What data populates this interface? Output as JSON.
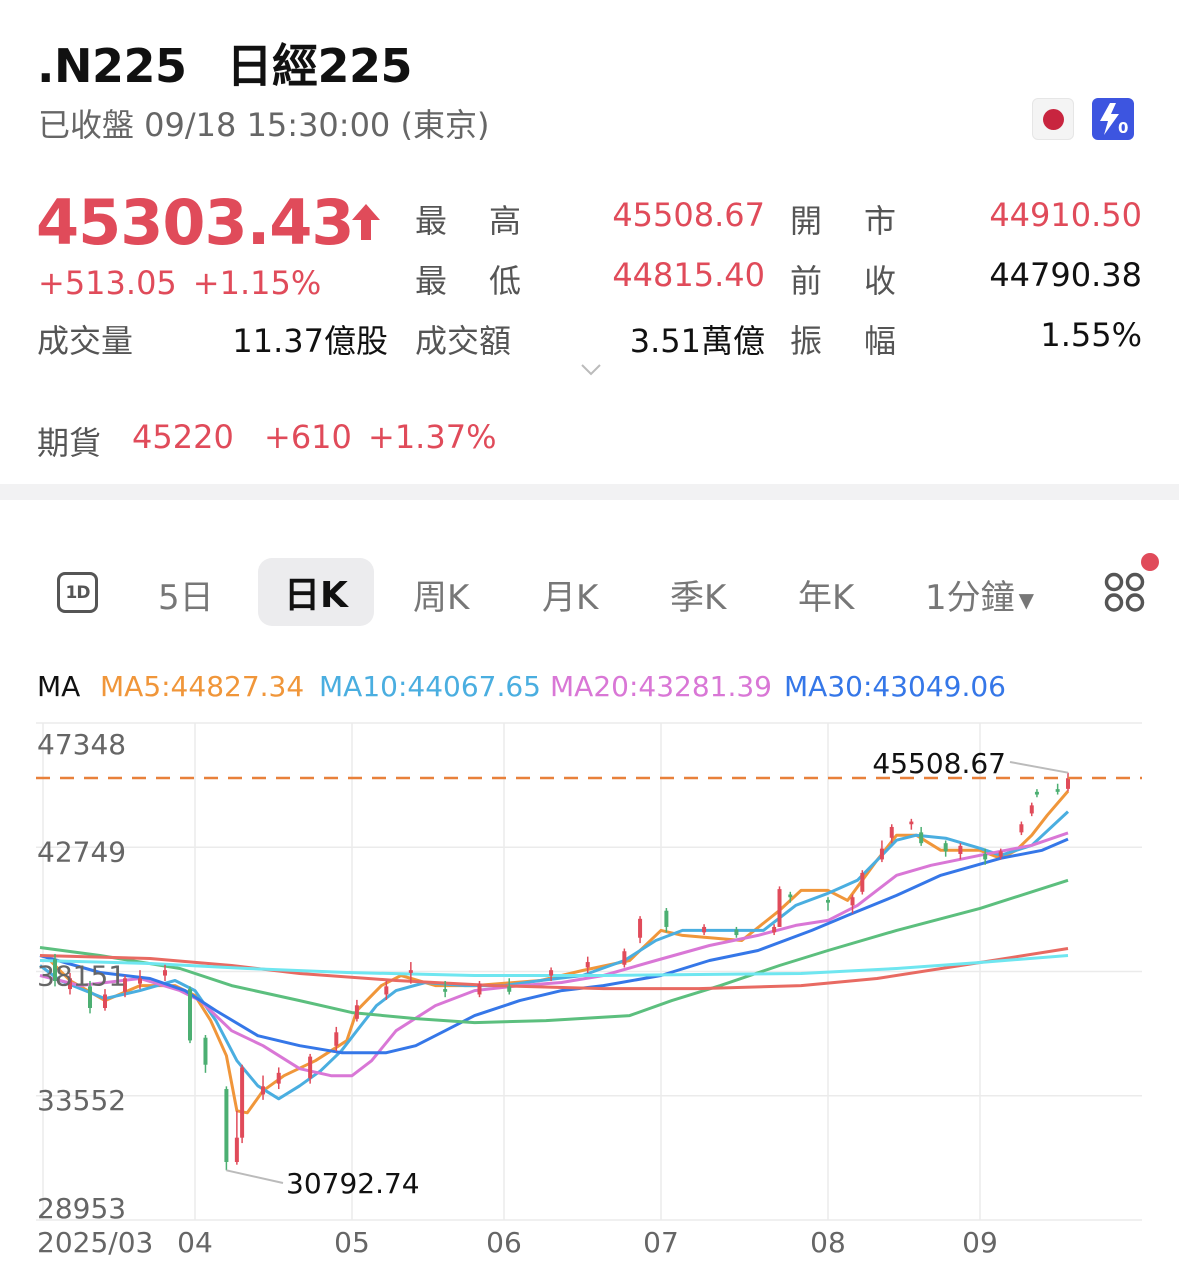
{
  "header": {
    "symbol": ".N225",
    "name": "日經225",
    "status": "已收盤 09/18 15:30:00 (東京)",
    "icons": [
      "japan-flag-icon",
      "zero-commission-bolt-icon"
    ]
  },
  "quote": {
    "price": "45303.43",
    "change": "+513.05",
    "change_pct": "+1.15%",
    "direction": "up",
    "stats": {
      "high_label": [
        "最",
        "高"
      ],
      "high": "45508.67",
      "open_label": [
        "開",
        "市"
      ],
      "open": "44910.50",
      "low_label": [
        "最",
        "低"
      ],
      "low": "44815.40",
      "prev_close_label": [
        "前",
        "收"
      ],
      "prev_close": "44790.38",
      "volume_label": "成交量",
      "volume": "11.37億股",
      "turnover_label": "成交額",
      "turnover": "3.51萬億",
      "amplitude_label": [
        "振",
        "幅"
      ],
      "amplitude": "1.55%"
    },
    "futures": {
      "label": "期貨",
      "price": "45220",
      "change": "+610",
      "change_pct": "+1.37%"
    }
  },
  "colors": {
    "up": "#e04b5a",
    "down": "#4caf72",
    "accent": "#3d55e0",
    "high_line": "#e8803a"
  },
  "tabs": {
    "items": [
      "5日",
      "日K",
      "周K",
      "月K",
      "季K",
      "年K"
    ],
    "selected": "日K",
    "minute_dropdown": "1分鐘",
    "intraday_icon_label": "1D"
  },
  "ma_legend": {
    "label": "MA",
    "ma5": "MA5:44827.34",
    "ma10": "MA10:44067.65",
    "ma20": "MA20:43281.39",
    "ma30": "MA30:43049.06"
  },
  "chart_data": {
    "type": "candlestick",
    "ylim": [
      28953,
      47348
    ],
    "y_ticks": [
      "47348",
      "42749",
      "38151",
      "33552",
      "28953"
    ],
    "x_ticks": [
      {
        "label": "2025/03",
        "date": "2025-03-01"
      },
      {
        "label": "04",
        "date": "2025-04-01"
      },
      {
        "label": "05",
        "date": "2025-05-01"
      },
      {
        "label": "06",
        "date": "2025-06-01"
      },
      {
        "label": "07",
        "date": "2025-07-01"
      },
      {
        "label": "08",
        "date": "2025-08-01"
      },
      {
        "label": "09",
        "date": "2025-09-01"
      }
    ],
    "grid": true,
    "high_marker": {
      "label": "45508.67",
      "value": 45508.67,
      "date": "2025-09-18"
    },
    "low_marker": {
      "label": "30792.74",
      "value": 30792.74,
      "date": "2025-04-07"
    },
    "candles_fields": [
      "date",
      "open",
      "close",
      "low",
      "high"
    ],
    "candles": [
      [
        "2025-03-04",
        38600,
        37800,
        37600,
        38800
      ],
      [
        "2025-03-07",
        37500,
        37900,
        37300,
        38100
      ],
      [
        "2025-03-11",
        37600,
        36800,
        36600,
        37800
      ],
      [
        "2025-03-14",
        36800,
        37300,
        36700,
        37500
      ],
      [
        "2025-03-18",
        37400,
        37900,
        37200,
        38000
      ],
      [
        "2025-03-21",
        37700,
        37900,
        37500,
        38200
      ],
      [
        "2025-03-26",
        38000,
        38200,
        37800,
        38400
      ],
      [
        "2025-03-31",
        37500,
        35600,
        35500,
        37600
      ],
      [
        "2025-04-03",
        35700,
        34700,
        34400,
        35800
      ],
      [
        "2025-04-07",
        33800,
        31100,
        30792.74,
        33900
      ],
      [
        "2025-04-09",
        31100,
        32000,
        31000,
        33000
      ],
      [
        "2025-04-10",
        32000,
        34600,
        31800,
        34700
      ],
      [
        "2025-04-14",
        33600,
        33900,
        33400,
        34300
      ],
      [
        "2025-04-17",
        34000,
        34400,
        33800,
        34600
      ],
      [
        "2025-04-23",
        34200,
        35000,
        34000,
        35100
      ],
      [
        "2025-04-28",
        35400,
        35900,
        35200,
        36100
      ],
      [
        "2025-05-02",
        36400,
        36900,
        36300,
        37100
      ],
      [
        "2025-05-08",
        37300,
        37600,
        37100,
        37800
      ],
      [
        "2025-05-13",
        38100,
        38200,
        37700,
        38500
      ],
      [
        "2025-05-20",
        37500,
        37400,
        37200,
        37800
      ],
      [
        "2025-05-27",
        37300,
        37700,
        37200,
        37800
      ],
      [
        "2025-06-02",
        37600,
        37400,
        37300,
        37900
      ],
      [
        "2025-06-10",
        38000,
        38200,
        37800,
        38300
      ],
      [
        "2025-06-17",
        38300,
        38500,
        38100,
        38700
      ],
      [
        "2025-06-24",
        38400,
        38900,
        38300,
        39000
      ],
      [
        "2025-06-27",
        39400,
        40100,
        39200,
        40200
      ],
      [
        "2025-07-02",
        40400,
        39800,
        39600,
        40500
      ],
      [
        "2025-07-09",
        39600,
        39800,
        39500,
        39900
      ],
      [
        "2025-07-15",
        39700,
        39500,
        39400,
        39800
      ],
      [
        "2025-07-22",
        39600,
        39800,
        39500,
        39900
      ],
      [
        "2025-07-23",
        39800,
        41200,
        39800,
        41300
      ],
      [
        "2025-07-25",
        41000,
        40900,
        40700,
        41100
      ],
      [
        "2025-08-01",
        40800,
        40700,
        40400,
        40900
      ],
      [
        "2025-08-06",
        40600,
        40900,
        40300,
        41000
      ],
      [
        "2025-08-08",
        41100,
        41800,
        41000,
        41900
      ],
      [
        "2025-08-12",
        42300,
        42700,
        42200,
        43000
      ],
      [
        "2025-08-14",
        43100,
        43500,
        42900,
        43600
      ],
      [
        "2025-08-18",
        43600,
        43700,
        43400,
        43800
      ],
      [
        "2025-08-20",
        43300,
        42900,
        42800,
        43500
      ],
      [
        "2025-08-25",
        42900,
        42600,
        42400,
        43000
      ],
      [
        "2025-08-28",
        42500,
        42800,
        42300,
        42900
      ],
      [
        "2025-09-02",
        42500,
        42300,
        42100,
        42700
      ],
      [
        "2025-09-05",
        42400,
        42600,
        42300,
        42700
      ],
      [
        "2025-09-09",
        43300,
        43600,
        43200,
        43700
      ],
      [
        "2025-09-11",
        44000,
        44300,
        43900,
        44400
      ],
      [
        "2025-09-12",
        44800,
        44700,
        44600,
        44900
      ],
      [
        "2025-09-16",
        44900,
        44800,
        44700,
        45100
      ],
      [
        "2025-09-18",
        44910.5,
        45303.43,
        44815.4,
        45508.67
      ]
    ],
    "series": [
      {
        "name": "MA5",
        "color": "#f0963a",
        "points": [
          [
            "2025-03-03",
            38557
          ],
          [
            "2025-03-07",
            37816
          ],
          [
            "2025-03-14",
            37074
          ],
          [
            "2025-03-21",
            37630
          ],
          [
            "2025-03-28",
            37630
          ],
          [
            "2025-04-01",
            37260
          ],
          [
            "2025-04-04",
            36332
          ],
          [
            "2025-04-07",
            35035
          ],
          [
            "2025-04-09",
            32994
          ],
          [
            "2025-04-11",
            32920
          ],
          [
            "2025-04-14",
            33736
          ],
          [
            "2025-04-18",
            34292
          ],
          [
            "2025-04-24",
            34849
          ],
          [
            "2025-04-30",
            35590
          ],
          [
            "2025-05-02",
            36703
          ],
          [
            "2025-05-07",
            37630
          ],
          [
            "2025-05-11",
            38001
          ],
          [
            "2025-05-18",
            37630
          ],
          [
            "2025-05-26",
            37630
          ],
          [
            "2025-06-08",
            37816
          ],
          [
            "2025-06-16",
            38187
          ],
          [
            "2025-06-25",
            38557
          ],
          [
            "2025-07-01",
            39670
          ],
          [
            "2025-07-05",
            39485
          ],
          [
            "2025-07-16",
            39299
          ],
          [
            "2025-07-23",
            40412
          ],
          [
            "2025-07-27",
            41154
          ],
          [
            "2025-08-01",
            41154
          ],
          [
            "2025-08-05",
            40783
          ],
          [
            "2025-08-11",
            42267
          ],
          [
            "2025-08-15",
            43194
          ],
          [
            "2025-08-19",
            43194
          ],
          [
            "2025-08-24",
            42638
          ],
          [
            "2025-09-01",
            42638
          ],
          [
            "2025-09-05",
            42341
          ],
          [
            "2025-09-08",
            42638
          ],
          [
            "2025-09-11",
            43194
          ],
          [
            "2025-09-14",
            43936
          ],
          [
            "2025-09-18",
            44827.34
          ]
        ]
      },
      {
        "name": "MA10",
        "color": "#4aaee0",
        "points": [
          [
            "2025-03-01",
            38372
          ],
          [
            "2025-03-05",
            37816
          ],
          [
            "2025-03-14",
            37148
          ],
          [
            "2025-03-21",
            37445
          ],
          [
            "2025-03-28",
            37816
          ],
          [
            "2025-04-01",
            37445
          ],
          [
            "2025-04-05",
            36332
          ],
          [
            "2025-04-09",
            34849
          ],
          [
            "2025-04-13",
            33921
          ],
          [
            "2025-04-17",
            33440
          ],
          [
            "2025-04-21",
            33921
          ],
          [
            "2025-04-25",
            34477
          ],
          [
            "2025-04-29",
            35220
          ],
          [
            "2025-05-02",
            35961
          ],
          [
            "2025-05-06",
            36888
          ],
          [
            "2025-05-10",
            37445
          ],
          [
            "2025-05-16",
            37742
          ],
          [
            "2025-05-24",
            37630
          ],
          [
            "2025-06-01",
            37630
          ],
          [
            "2025-06-08",
            37816
          ],
          [
            "2025-06-16",
            38001
          ],
          [
            "2025-06-24",
            38557
          ],
          [
            "2025-06-30",
            39299
          ],
          [
            "2025-07-05",
            39670
          ],
          [
            "2025-07-13",
            39670
          ],
          [
            "2025-07-20",
            39670
          ],
          [
            "2025-07-26",
            40597
          ],
          [
            "2025-08-01",
            41043
          ],
          [
            "2025-08-07",
            41525
          ],
          [
            "2025-08-11",
            42267
          ],
          [
            "2025-08-15",
            43009
          ],
          [
            "2025-08-19",
            43194
          ],
          [
            "2025-08-25",
            43083
          ],
          [
            "2025-09-01",
            42712
          ],
          [
            "2025-09-05",
            42452
          ],
          [
            "2025-09-11",
            42823
          ],
          [
            "2025-09-18",
            44067.65
          ]
        ]
      },
      {
        "name": "MA20",
        "color": "#d977d6",
        "points": [
          [
            "2025-03-01",
            38001
          ],
          [
            "2025-03-09",
            37630
          ],
          [
            "2025-03-21",
            37890
          ],
          [
            "2025-03-29",
            37445
          ],
          [
            "2025-04-02",
            37074
          ],
          [
            "2025-04-08",
            35961
          ],
          [
            "2025-04-14",
            35405
          ],
          [
            "2025-04-21",
            34552
          ],
          [
            "2025-04-27",
            34292
          ],
          [
            "2025-05-01",
            34292
          ],
          [
            "2025-05-05",
            34849
          ],
          [
            "2025-05-10",
            35961
          ],
          [
            "2025-05-18",
            36888
          ],
          [
            "2025-05-26",
            37445
          ],
          [
            "2025-06-04",
            37630
          ],
          [
            "2025-06-12",
            37742
          ],
          [
            "2025-06-20",
            38001
          ],
          [
            "2025-06-30",
            38557
          ],
          [
            "2025-07-10",
            39114
          ],
          [
            "2025-07-19",
            39485
          ],
          [
            "2025-07-26",
            39856
          ],
          [
            "2025-08-01",
            40041
          ],
          [
            "2025-08-07",
            40597
          ],
          [
            "2025-08-15",
            41710
          ],
          [
            "2025-08-22",
            42081
          ],
          [
            "2025-09-01",
            42452
          ],
          [
            "2025-09-11",
            42823
          ],
          [
            "2025-09-18",
            43281.39
          ]
        ]
      },
      {
        "name": "MA30",
        "color": "#3577e8",
        "points": [
          [
            "2025-03-01",
            38743
          ],
          [
            "2025-03-13",
            38113
          ],
          [
            "2025-03-23",
            37890
          ],
          [
            "2025-03-30",
            37445
          ],
          [
            "2025-04-05",
            36703
          ],
          [
            "2025-04-13",
            35776
          ],
          [
            "2025-04-21",
            35405
          ],
          [
            "2025-04-29",
            35146
          ],
          [
            "2025-05-08",
            35146
          ],
          [
            "2025-05-14",
            35405
          ],
          [
            "2025-05-20",
            35961
          ],
          [
            "2025-05-26",
            36517
          ],
          [
            "2025-06-04",
            37074
          ],
          [
            "2025-06-12",
            37445
          ],
          [
            "2025-06-20",
            37630
          ],
          [
            "2025-07-01",
            38001
          ],
          [
            "2025-07-10",
            38557
          ],
          [
            "2025-07-19",
            38928
          ],
          [
            "2025-07-29",
            39670
          ],
          [
            "2025-08-05",
            40227
          ],
          [
            "2025-08-15",
            40968
          ],
          [
            "2025-08-24",
            41710
          ],
          [
            "2025-09-05",
            42341
          ],
          [
            "2025-09-13",
            42638
          ],
          [
            "2025-09-18",
            43049.06
          ]
        ]
      },
      {
        "color": "#5cbf7e",
        "points": [
          [
            "2025-03-01",
            39040
          ],
          [
            "2025-03-13",
            38743
          ],
          [
            "2025-03-29",
            38261
          ],
          [
            "2025-04-08",
            37630
          ],
          [
            "2025-04-21",
            37074
          ],
          [
            "2025-05-01",
            36629
          ],
          [
            "2025-05-14",
            36406
          ],
          [
            "2025-05-26",
            36258
          ],
          [
            "2025-06-09",
            36332
          ],
          [
            "2025-06-25",
            36517
          ],
          [
            "2025-07-03",
            37074
          ],
          [
            "2025-07-12",
            37630
          ],
          [
            "2025-07-23",
            38372
          ],
          [
            "2025-08-01",
            38928
          ],
          [
            "2025-08-15",
            39670
          ],
          [
            "2025-09-01",
            40486
          ],
          [
            "2025-09-18",
            41525
          ]
        ]
      },
      {
        "color": "#e86a62",
        "points": [
          [
            "2025-03-01",
            38743
          ],
          [
            "2025-03-23",
            38632
          ],
          [
            "2025-04-08",
            38372
          ],
          [
            "2025-04-21",
            38075
          ],
          [
            "2025-05-10",
            37816
          ],
          [
            "2025-05-30",
            37630
          ],
          [
            "2025-06-20",
            37519
          ],
          [
            "2025-07-08",
            37519
          ],
          [
            "2025-07-27",
            37630
          ],
          [
            "2025-08-11",
            37890
          ],
          [
            "2025-09-01",
            38483
          ],
          [
            "2025-09-18",
            39002
          ]
        ]
      },
      {
        "color": "#6fe6f0",
        "points": [
          [
            "2025-03-01",
            38557
          ],
          [
            "2025-03-23",
            38446
          ],
          [
            "2025-04-11",
            38261
          ],
          [
            "2025-04-30",
            38113
          ],
          [
            "2025-05-26",
            38001
          ],
          [
            "2025-06-20",
            38001
          ],
          [
            "2025-07-27",
            38075
          ],
          [
            "2025-08-15",
            38261
          ],
          [
            "2025-09-01",
            38483
          ],
          [
            "2025-09-18",
            38743
          ]
        ]
      }
    ]
  }
}
